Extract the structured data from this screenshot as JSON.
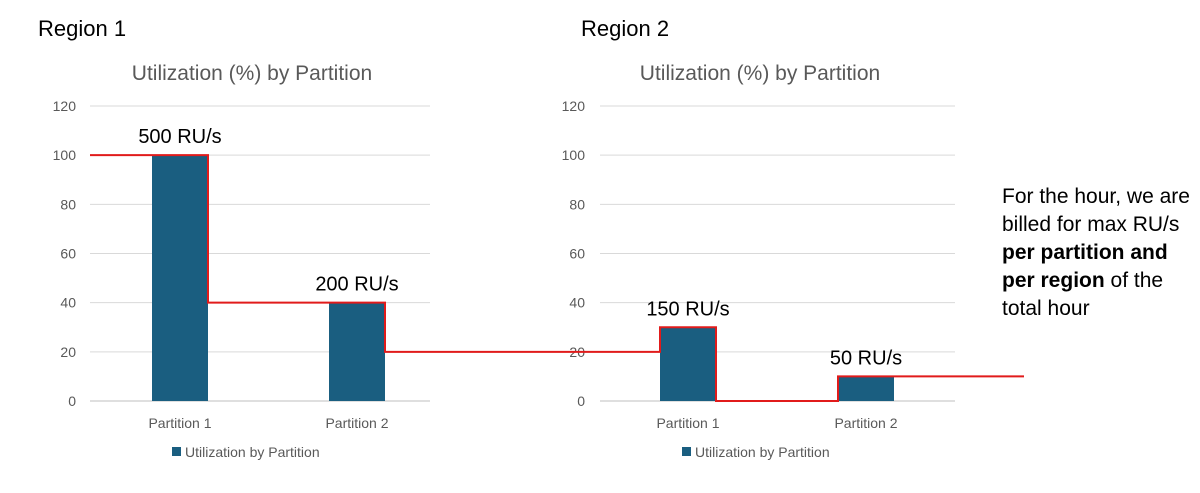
{
  "regions": [
    {
      "title": "Region 1"
    },
    {
      "title": "Region 2"
    }
  ],
  "chart_data": [
    {
      "type": "bar",
      "title": "Utilization (%) by Partition",
      "categories": [
        "Partition 1",
        "Partition 2"
      ],
      "series": [
        {
          "name": "Utilization by Partition",
          "values": [
            100,
            40
          ]
        }
      ],
      "bar_labels": [
        "500 RU/s",
        "200 RU/s"
      ],
      "ylim": [
        0,
        120
      ],
      "yticks": [
        0,
        20,
        40,
        60,
        80,
        100,
        120
      ],
      "grid": true,
      "legend": "bottom"
    },
    {
      "type": "bar",
      "title": "Utilization (%) by Partition",
      "categories": [
        "Partition 1",
        "Partition 2"
      ],
      "series": [
        {
          "name": "Utilization by Partition",
          "values": [
            30,
            10
          ]
        }
      ],
      "bar_labels": [
        "150 RU/s",
        "50 RU/s"
      ],
      "ylim": [
        0,
        120
      ],
      "yticks": [
        0,
        20,
        40,
        60,
        80,
        100,
        120
      ],
      "grid": true,
      "legend": "bottom"
    }
  ],
  "note": {
    "text_1": "For the hour, we are billed for max RU/s ",
    "bold_1": "per partition and per region",
    "text_2": " of the total hour"
  },
  "colors": {
    "bar": "#1a5e80",
    "step_line": "#e11b1b",
    "grid": "#d9d9d9"
  }
}
